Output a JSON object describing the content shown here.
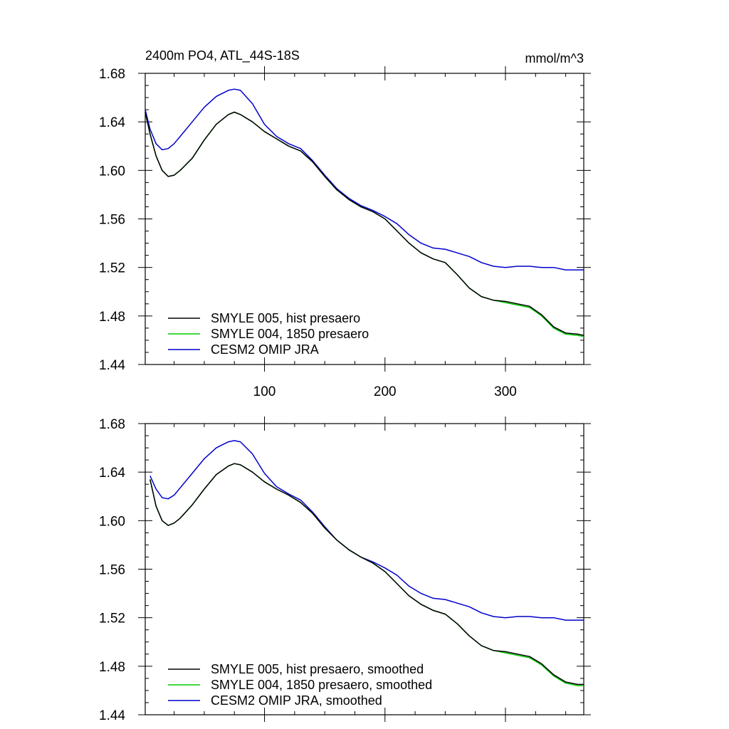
{
  "chart_data": [
    {
      "type": "line",
      "title": "2400m PO4, ATL_44S-18S",
      "units": "mmol/m^3",
      "xlim": [
        1,
        365
      ],
      "ylim": [
        1.44,
        1.68
      ],
      "yticks": [
        "1.44",
        "1.48",
        "1.52",
        "1.56",
        "1.60",
        "1.64",
        "1.68"
      ],
      "xticks": [
        "100",
        "200",
        "300"
      ],
      "show_x_tick_labels": true,
      "grid": false,
      "legend_position": "bottom-left",
      "series": [
        {
          "name": "SMYLE 005, hist presaero",
          "color": "#000000",
          "x": [
            1,
            5,
            10,
            15,
            20,
            25,
            30,
            40,
            50,
            60,
            70,
            75,
            80,
            90,
            100,
            110,
            120,
            130,
            140,
            150,
            160,
            170,
            180,
            190,
            200,
            210,
            220,
            230,
            240,
            250,
            260,
            270,
            280,
            290,
            300,
            310,
            320,
            330,
            340,
            350,
            360,
            365
          ],
          "y": [
            1.648,
            1.63,
            1.612,
            1.6,
            1.595,
            1.596,
            1.6,
            1.61,
            1.625,
            1.638,
            1.646,
            1.648,
            1.646,
            1.64,
            1.632,
            1.626,
            1.62,
            1.616,
            1.607,
            1.595,
            1.584,
            1.576,
            1.57,
            1.566,
            1.56,
            1.55,
            1.54,
            1.532,
            1.527,
            1.524,
            1.514,
            1.503,
            1.496,
            1.493,
            1.492,
            1.49,
            1.488,
            1.481,
            1.471,
            1.466,
            1.465,
            1.464
          ]
        },
        {
          "name": "SMYLE 004, 1850 presaero",
          "color": "#00cc00",
          "x": [
            1,
            5,
            10,
            15,
            20,
            25,
            30,
            40,
            50,
            60,
            70,
            75,
            80,
            90,
            100,
            110,
            120,
            130,
            140,
            150,
            160,
            170,
            180,
            190,
            200,
            210,
            220,
            230,
            240,
            250,
            260,
            270,
            280,
            290,
            300,
            310,
            320,
            330,
            340,
            350,
            360,
            365
          ],
          "y": [
            1.648,
            1.63,
            1.612,
            1.6,
            1.595,
            1.596,
            1.6,
            1.61,
            1.625,
            1.638,
            1.646,
            1.648,
            1.646,
            1.64,
            1.632,
            1.626,
            1.62,
            1.616,
            1.607,
            1.595,
            1.584,
            1.576,
            1.57,
            1.566,
            1.56,
            1.55,
            1.54,
            1.532,
            1.527,
            1.524,
            1.514,
            1.503,
            1.496,
            1.493,
            1.491,
            1.489,
            1.487,
            1.48,
            1.47,
            1.465,
            1.464,
            1.463
          ]
        },
        {
          "name": "CESM2 OMIP JRA",
          "color": "#0000cc",
          "x": [
            1,
            5,
            10,
            15,
            20,
            25,
            30,
            40,
            50,
            60,
            70,
            75,
            80,
            90,
            100,
            110,
            120,
            130,
            140,
            150,
            160,
            170,
            180,
            190,
            200,
            210,
            220,
            230,
            240,
            250,
            260,
            270,
            280,
            290,
            300,
            310,
            320,
            330,
            340,
            350,
            360,
            365
          ],
          "y": [
            1.65,
            1.634,
            1.622,
            1.617,
            1.618,
            1.622,
            1.628,
            1.64,
            1.652,
            1.661,
            1.666,
            1.667,
            1.666,
            1.655,
            1.638,
            1.628,
            1.622,
            1.618,
            1.608,
            1.596,
            1.585,
            1.577,
            1.571,
            1.567,
            1.562,
            1.556,
            1.547,
            1.54,
            1.536,
            1.535,
            1.532,
            1.529,
            1.524,
            1.521,
            1.52,
            1.521,
            1.521,
            1.52,
            1.52,
            1.518,
            1.518,
            1.518
          ]
        }
      ]
    },
    {
      "type": "line",
      "title": "",
      "units": "",
      "xlim": [
        1,
        365
      ],
      "ylim": [
        1.44,
        1.68
      ],
      "yticks": [
        "1.44",
        "1.48",
        "1.52",
        "1.56",
        "1.60",
        "1.64",
        "1.68"
      ],
      "xticks": [
        "",
        "",
        ""
      ],
      "show_x_tick_labels": false,
      "grid": false,
      "legend_position": "bottom-left",
      "series": [
        {
          "name": "SMYLE 005, hist presaero, smoothed",
          "color": "#000000",
          "x": [
            5,
            10,
            15,
            20,
            25,
            30,
            40,
            50,
            60,
            70,
            75,
            80,
            90,
            100,
            110,
            120,
            130,
            140,
            150,
            160,
            170,
            180,
            190,
            200,
            210,
            220,
            230,
            240,
            250,
            260,
            270,
            280,
            290,
            300,
            310,
            320,
            330,
            340,
            350,
            360,
            365
          ],
          "y": [
            1.634,
            1.612,
            1.6,
            1.596,
            1.598,
            1.602,
            1.613,
            1.626,
            1.638,
            1.645,
            1.647,
            1.646,
            1.64,
            1.632,
            1.626,
            1.621,
            1.615,
            1.606,
            1.594,
            1.584,
            1.576,
            1.57,
            1.565,
            1.558,
            1.548,
            1.538,
            1.531,
            1.526,
            1.523,
            1.515,
            1.505,
            1.497,
            1.493,
            1.492,
            1.49,
            1.488,
            1.482,
            1.473,
            1.467,
            1.465,
            1.465
          ]
        },
        {
          "name": "SMYLE 004, 1850 presaero, smoothed",
          "color": "#00cc00",
          "x": [
            5,
            10,
            15,
            20,
            25,
            30,
            40,
            50,
            60,
            70,
            75,
            80,
            90,
            100,
            110,
            120,
            130,
            140,
            150,
            160,
            170,
            180,
            190,
            200,
            210,
            220,
            230,
            240,
            250,
            260,
            270,
            280,
            290,
            300,
            310,
            320,
            330,
            340,
            350,
            360,
            365
          ],
          "y": [
            1.634,
            1.612,
            1.6,
            1.596,
            1.598,
            1.602,
            1.613,
            1.626,
            1.638,
            1.645,
            1.647,
            1.646,
            1.64,
            1.632,
            1.626,
            1.621,
            1.615,
            1.606,
            1.594,
            1.584,
            1.576,
            1.57,
            1.565,
            1.558,
            1.548,
            1.538,
            1.531,
            1.526,
            1.523,
            1.515,
            1.505,
            1.497,
            1.493,
            1.491,
            1.489,
            1.487,
            1.481,
            1.472,
            1.466,
            1.464,
            1.464
          ]
        },
        {
          "name": "CESM2 OMIP JRA, smoothed",
          "color": "#0000cc",
          "x": [
            5,
            10,
            15,
            20,
            25,
            30,
            40,
            50,
            60,
            70,
            75,
            80,
            90,
            100,
            110,
            120,
            130,
            140,
            150,
            160,
            170,
            180,
            190,
            200,
            210,
            220,
            230,
            240,
            250,
            260,
            270,
            280,
            290,
            300,
            310,
            320,
            330,
            340,
            350,
            360,
            365
          ],
          "y": [
            1.637,
            1.626,
            1.619,
            1.618,
            1.621,
            1.627,
            1.639,
            1.651,
            1.66,
            1.665,
            1.666,
            1.665,
            1.655,
            1.639,
            1.628,
            1.622,
            1.617,
            1.607,
            1.595,
            1.584,
            1.576,
            1.57,
            1.566,
            1.561,
            1.555,
            1.546,
            1.54,
            1.536,
            1.535,
            1.532,
            1.529,
            1.524,
            1.521,
            1.52,
            1.521,
            1.521,
            1.52,
            1.52,
            1.518,
            1.518,
            1.518
          ]
        }
      ]
    }
  ]
}
